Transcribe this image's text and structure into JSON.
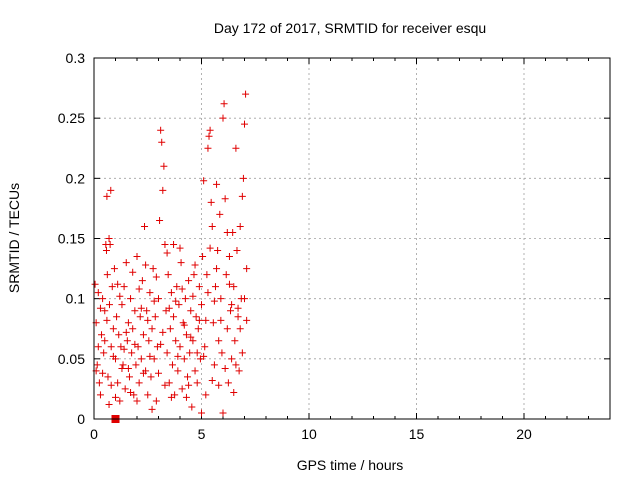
{
  "chart_data": {
    "type": "scatter",
    "title": "Day 172 of 2017, SRMTID for receiver esqu",
    "xlabel": "GPS time / hours",
    "ylabel": "SRMTID / TECUs",
    "xlim": [
      0,
      24
    ],
    "ylim": [
      0,
      0.3
    ],
    "xticks": [
      0,
      5,
      10,
      15,
      20
    ],
    "xtick_labels": [
      "0",
      "5",
      "10",
      "15",
      "20"
    ],
    "yticks": [
      0,
      0.05,
      0.1,
      0.15,
      0.2,
      0.25,
      0.3
    ],
    "ytick_labels": [
      "0",
      "0.05",
      "0.1",
      "0.15",
      "0.2",
      "0.25",
      "0.3"
    ],
    "grid": true,
    "marker_color": "#e00000",
    "marker": "plus",
    "sample_marker": {
      "x": 1.0,
      "y": 0.0,
      "shape": "square"
    },
    "series": [
      {
        "name": "SRMTID",
        "points": [
          [
            0.05,
            0.112
          ],
          [
            0.1,
            0.08
          ],
          [
            0.15,
            0.045
          ],
          [
            0.2,
            0.06
          ],
          [
            0.25,
            0.03
          ],
          [
            0.3,
            0.02
          ],
          [
            0.35,
            0.07
          ],
          [
            0.4,
            0.1
          ],
          [
            0.45,
            0.055
          ],
          [
            0.5,
            0.09
          ],
          [
            0.55,
            0.145
          ],
          [
            0.58,
            0.14
          ],
          [
            0.6,
            0.185
          ],
          [
            0.62,
            0.12
          ],
          [
            0.65,
            0.035
          ],
          [
            0.7,
            0.15
          ],
          [
            0.72,
            0.095
          ],
          [
            0.75,
            0.145
          ],
          [
            0.78,
            0.19
          ],
          [
            0.8,
            0.06
          ],
          [
            0.85,
            0.11
          ],
          [
            0.9,
            0.075
          ],
          [
            0.95,
            0.125
          ],
          [
            1.0,
            0.05
          ],
          [
            1.05,
            0.085
          ],
          [
            1.1,
            0.03
          ],
          [
            1.15,
            0.07
          ],
          [
            1.2,
            0.015
          ],
          [
            1.25,
            0.06
          ],
          [
            1.3,
            0.095
          ],
          [
            1.35,
            0.045
          ],
          [
            1.4,
            0.11
          ],
          [
            1.45,
            0.025
          ],
          [
            1.5,
            0.13
          ],
          [
            1.55,
            0.065
          ],
          [
            1.6,
            0.08
          ],
          [
            1.65,
            0.035
          ],
          [
            1.7,
            0.1
          ],
          [
            1.75,
            0.055
          ],
          [
            1.8,
            0.075
          ],
          [
            1.85,
            0.02
          ],
          [
            1.9,
            0.09
          ],
          [
            1.95,
            0.045
          ],
          [
            2.0,
            0.135
          ],
          [
            2.05,
            0.06
          ],
          [
            2.1,
            0.03
          ],
          [
            2.15,
            0.085
          ],
          [
            2.2,
            0.05
          ],
          [
            2.25,
            0.115
          ],
          [
            2.3,
            0.07
          ],
          [
            2.35,
            0.16
          ],
          [
            2.4,
            0.04
          ],
          [
            2.45,
            0.09
          ],
          [
            2.5,
            0.02
          ],
          [
            2.55,
            0.065
          ],
          [
            2.6,
            0.105
          ],
          [
            2.65,
            0.035
          ],
          [
            2.7,
            0.075
          ],
          [
            2.75,
            0.125
          ],
          [
            2.8,
            0.05
          ],
          [
            2.85,
            0.085
          ],
          [
            2.9,
            0.015
          ],
          [
            2.95,
            0.06
          ],
          [
            3.0,
            0.1
          ],
          [
            3.05,
            0.165
          ],
          [
            3.1,
            0.24
          ],
          [
            3.15,
            0.23
          ],
          [
            3.2,
            0.19
          ],
          [
            3.25,
            0.21
          ],
          [
            3.3,
            0.145
          ],
          [
            3.35,
            0.09
          ],
          [
            3.4,
            0.055
          ],
          [
            3.45,
            0.12
          ],
          [
            3.5,
            0.03
          ],
          [
            3.55,
            0.075
          ],
          [
            3.6,
            0.105
          ],
          [
            3.65,
            0.045
          ],
          [
            3.7,
            0.085
          ],
          [
            3.75,
            0.02
          ],
          [
            3.8,
            0.065
          ],
          [
            3.85,
            0.11
          ],
          [
            3.9,
            0.04
          ],
          [
            3.95,
            0.095
          ],
          [
            4.0,
            0.06
          ],
          [
            4.05,
            0.13
          ],
          [
            4.1,
            0.025
          ],
          [
            4.15,
            0.08
          ],
          [
            4.2,
            0.05
          ],
          [
            4.25,
            0.1
          ],
          [
            4.3,
            0.07
          ],
          [
            4.35,
            0.035
          ],
          [
            4.4,
            0.115
          ],
          [
            4.45,
            0.055
          ],
          [
            4.5,
            0.09
          ],
          [
            4.55,
            0.01
          ],
          [
            4.6,
            0.065
          ],
          [
            4.65,
            0.12
          ],
          [
            4.7,
            0.04
          ],
          [
            4.75,
            0.085
          ],
          [
            4.8,
            0.03
          ],
          [
            4.85,
            0.075
          ],
          [
            4.9,
            0.11
          ],
          [
            4.95,
            0.05
          ],
          [
            5.0,
            0.095
          ],
          [
            5.05,
            0.135
          ],
          [
            5.1,
            0.198
          ],
          [
            5.15,
            0.06
          ],
          [
            5.2,
            0.02
          ],
          [
            5.25,
            0.12
          ],
          [
            5.3,
            0.225
          ],
          [
            5.35,
            0.235
          ],
          [
            5.4,
            0.24
          ],
          [
            5.45,
            0.18
          ],
          [
            5.5,
            0.16
          ],
          [
            5.55,
            0.08
          ],
          [
            5.6,
            0.045
          ],
          [
            5.65,
            0.11
          ],
          [
            5.7,
            0.195
          ],
          [
            5.75,
            0.14
          ],
          [
            5.8,
            0.065
          ],
          [
            5.85,
            0.17
          ],
          [
            5.9,
            0.1
          ],
          [
            5.95,
            0.055
          ],
          [
            6.0,
            0.25
          ],
          [
            6.05,
            0.262
          ],
          [
            6.1,
            0.183
          ],
          [
            6.15,
            0.12
          ],
          [
            6.2,
            0.075
          ],
          [
            6.25,
            0.03
          ],
          [
            6.3,
            0.135
          ],
          [
            6.35,
            0.09
          ],
          [
            6.4,
            0.05
          ],
          [
            6.45,
            0.155
          ],
          [
            6.5,
            0.11
          ],
          [
            6.55,
            0.065
          ],
          [
            6.6,
            0.225
          ],
          [
            6.65,
            0.14
          ],
          [
            6.7,
            0.085
          ],
          [
            6.75,
            0.04
          ],
          [
            6.8,
            0.16
          ],
          [
            6.85,
            0.1
          ],
          [
            6.9,
            0.185
          ],
          [
            6.95,
            0.2
          ],
          [
            7.0,
            0.245
          ],
          [
            7.05,
            0.27
          ],
          [
            7.1,
            0.125
          ],
          [
            0.2,
            0.105
          ],
          [
            0.4,
            0.038
          ],
          [
            0.6,
            0.082
          ],
          [
            0.8,
            0.028
          ],
          [
            1.0,
            0.018
          ],
          [
            1.2,
            0.102
          ],
          [
            1.4,
            0.058
          ],
          [
            1.6,
            0.042
          ],
          [
            1.8,
            0.122
          ],
          [
            2.0,
            0.015
          ],
          [
            2.2,
            0.092
          ],
          [
            2.4,
            0.128
          ],
          [
            2.6,
            0.052
          ],
          [
            2.8,
            0.098
          ],
          [
            3.0,
            0.038
          ],
          [
            3.2,
            0.072
          ],
          [
            3.4,
            0.138
          ],
          [
            3.6,
            0.018
          ],
          [
            3.8,
            0.098
          ],
          [
            4.0,
            0.142
          ],
          [
            4.2,
            0.078
          ],
          [
            4.4,
            0.028
          ],
          [
            4.6,
            0.102
          ],
          [
            4.8,
            0.055
          ],
          [
            5.0,
            0.005
          ],
          [
            5.2,
            0.082
          ],
          [
            5.4,
            0.142
          ],
          [
            5.6,
            0.098
          ],
          [
            5.8,
            0.028
          ],
          [
            6.0,
            0.005
          ],
          [
            6.2,
            0.155
          ],
          [
            6.4,
            0.095
          ],
          [
            6.6,
            0.045
          ],
          [
            6.8,
            0.075
          ],
          [
            7.0,
            0.1
          ],
          [
            0.1,
            0.04
          ],
          [
            0.3,
            0.092
          ],
          [
            0.5,
            0.065
          ],
          [
            0.7,
            0.012
          ],
          [
            0.9,
            0.052
          ],
          [
            1.1,
            0.112
          ],
          [
            1.3,
            0.042
          ],
          [
            1.5,
            0.072
          ],
          [
            1.7,
            0.022
          ],
          [
            1.9,
            0.062
          ],
          [
            2.1,
            0.108
          ],
          [
            2.3,
            0.038
          ],
          [
            2.5,
            0.082
          ],
          [
            2.7,
            0.008
          ],
          [
            2.9,
            0.118
          ],
          [
            3.1,
            0.062
          ],
          [
            3.3,
            0.028
          ],
          [
            3.5,
            0.092
          ],
          [
            3.7,
            0.145
          ],
          [
            3.9,
            0.052
          ],
          [
            4.1,
            0.108
          ],
          [
            4.3,
            0.018
          ],
          [
            4.5,
            0.068
          ],
          [
            4.7,
            0.128
          ],
          [
            4.9,
            0.082
          ],
          [
            5.1,
            0.052
          ],
          [
            5.3,
            0.105
          ],
          [
            5.5,
            0.032
          ],
          [
            5.7,
            0.125
          ],
          [
            5.9,
            0.082
          ],
          [
            6.1,
            0.042
          ],
          [
            6.3,
            0.112
          ],
          [
            6.5,
            0.022
          ],
          [
            6.7,
            0.092
          ],
          [
            6.9,
            0.055
          ],
          [
            7.1,
            0.082
          ]
        ]
      }
    ]
  }
}
